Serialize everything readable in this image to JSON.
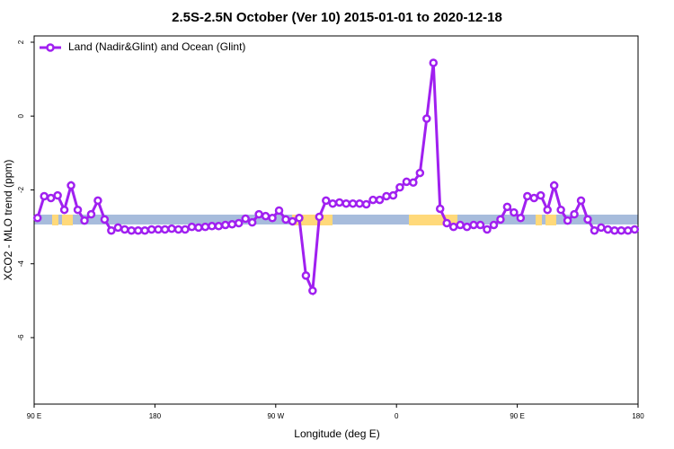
{
  "chart_data": {
    "type": "line",
    "title": "2.5S-2.5N October (Ver 10)   2015-01-01 to 2020-12-18",
    "x_label": "Longitude (deg E)",
    "y_label": "XCO2 - MLO trend (ppm)",
    "legend_position": "top-left",
    "xlim": [
      90,
      540
    ],
    "ylim": [
      -7.8,
      2.17
    ],
    "xticks": [
      {
        "value": 90,
        "label": "90 E"
      },
      180,
      {
        "value": 270,
        "label": "90 W"
      },
      {
        "value": 360,
        "label": "0"
      },
      {
        "value": 450,
        "label": "90 E"
      },
      {
        "value": 540,
        "label": "180"
      }
    ],
    "yticks": [
      -6,
      -4,
      -2,
      0,
      2
    ],
    "grid": false,
    "x": [
      92.5,
      97.5,
      102.5,
      107.5,
      112.5,
      117.5,
      122.5,
      127.5,
      132.5,
      137.5,
      142.5,
      147.5,
      152.5,
      157.5,
      162.5,
      167.5,
      172.5,
      177.5,
      182.5,
      187.5,
      192.5,
      197.5,
      202.5,
      207.5,
      212.5,
      217.5,
      222.5,
      227.5,
      232.5,
      237.5,
      242.5,
      247.5,
      252.5,
      257.5,
      262.5,
      267.5,
      272.5,
      277.5,
      282.5,
      287.5,
      292.5,
      297.5,
      302.5,
      307.5,
      312.5,
      317.5,
      322.5,
      327.5,
      332.5,
      337.5,
      342.5,
      347.5,
      352.5,
      357.5,
      362.5,
      367.5,
      372.5,
      377.5,
      382.5,
      387.5,
      392.5,
      397.5,
      402.5,
      407.5,
      412.5,
      417.5,
      422.5,
      427.5,
      432.5,
      437.5,
      442.5,
      447.5,
      452.5,
      457.5,
      462.5,
      467.5,
      472.5,
      477.5,
      482.5,
      487.5,
      492.5,
      497.5,
      502.5,
      507.5,
      512.5,
      517.5,
      522.5,
      527.5,
      532.5,
      537.5
    ],
    "series": [
      {
        "name": "Land (Nadir&Glint) and Ocean (Glint)",
        "color": "#a020f0",
        "values": [
          -2.76,
          -2.17,
          -2.22,
          -2.15,
          -2.54,
          -1.88,
          -2.54,
          -2.83,
          -2.66,
          -2.29,
          -2.8,
          -3.1,
          -3.02,
          -3.07,
          -3.1,
          -3.1,
          -3.1,
          -3.07,
          -3.07,
          -3.07,
          -3.05,
          -3.07,
          -3.07,
          -3.0,
          -3.02,
          -3.0,
          -2.98,
          -2.98,
          -2.95,
          -2.93,
          -2.9,
          -2.78,
          -2.88,
          -2.66,
          -2.71,
          -2.76,
          -2.56,
          -2.8,
          -2.85,
          -2.76,
          -4.32,
          -4.73,
          -2.73,
          -2.29,
          -2.37,
          -2.34,
          -2.37,
          -2.37,
          -2.37,
          -2.39,
          -2.27,
          -2.27,
          -2.17,
          -2.15,
          -1.93,
          -1.78,
          -1.8,
          -1.54,
          -0.07,
          1.44,
          -2.51,
          -2.9,
          -3.0,
          -2.95,
          -3.0,
          -2.95,
          -2.95,
          -3.07,
          -2.95,
          -2.8,
          -2.46,
          -2.61,
          -2.76,
          -2.17,
          -2.22,
          -2.15,
          -2.54,
          -1.88,
          -2.54,
          -2.83,
          -2.66,
          -2.29,
          -2.8,
          -3.1,
          -3.02,
          -3.07,
          -3.1,
          -3.1,
          -3.1,
          -3.07
        ]
      }
    ]
  }
}
